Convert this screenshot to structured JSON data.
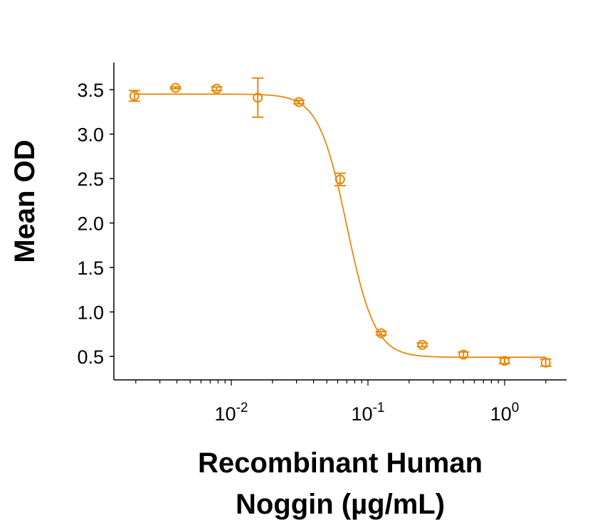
{
  "chart_data": {
    "type": "scatter",
    "title": "",
    "xlabel_lines": [
      "Recombinant Human",
      "Noggin (µg/mL)"
    ],
    "ylabel": "Mean OD",
    "x_scale": "log",
    "xlim": [
      0.0015,
      3
    ],
    "ylim": [
      0.28,
      3.8
    ],
    "x_ticks": [
      {
        "value": 0.01,
        "base": "10",
        "exp": "-2"
      },
      {
        "value": 0.1,
        "base": "10",
        "exp": "-1"
      },
      {
        "value": 1,
        "base": "10",
        "exp": "0"
      }
    ],
    "y_ticks": [
      "0.5",
      "1.0",
      "1.5",
      "2.0",
      "2.5",
      "3.0",
      "3.5"
    ],
    "grid": false,
    "color": "#E8890C",
    "series": [
      {
        "x": [
          0.001953125,
          0.00390625,
          0.0078125,
          0.015625,
          0.03125,
          0.0625,
          0.125,
          0.25,
          0.5,
          1,
          2
        ],
        "y": [
          3.43,
          3.52,
          3.51,
          3.41,
          3.36,
          2.49,
          0.76,
          0.63,
          0.52,
          0.45,
          0.43
        ],
        "error": [
          0.06,
          0.01,
          0.02,
          0.22,
          0.02,
          0.07,
          0.02,
          0.02,
          0.03,
          0.03,
          0.04
        ]
      }
    ],
    "fit_curve": {
      "model": "4PL",
      "top": 3.45,
      "bottom": 0.49,
      "ec50": 0.07,
      "hill": 4.2
    }
  }
}
